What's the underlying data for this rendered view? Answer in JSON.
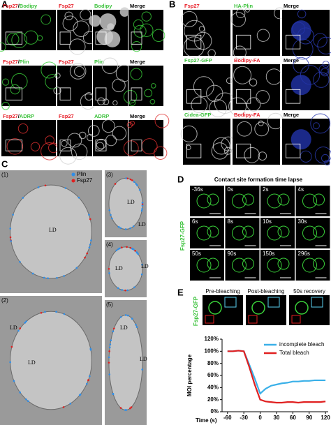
{
  "panel_a": {
    "label": "A",
    "rows": [
      {
        "title": [
          "Fsp27",
          "/",
          "Bodipy"
        ],
        "columns": [
          "Fsp27",
          "Bodipy",
          "Merge"
        ]
      },
      {
        "title": [
          "Fsp27",
          "/",
          "Plin"
        ],
        "columns": [
          "Fsp27",
          "Plin",
          "Merge"
        ]
      },
      {
        "title": [
          "Fsp27",
          "/",
          "ADRP"
        ],
        "columns": [
          "Fsp27",
          "ADRP",
          "Merge"
        ]
      }
    ]
  },
  "panel_b": {
    "label": "B",
    "rows": [
      {
        "columns": [
          "Fsp27",
          "HA-Plin",
          "Merge"
        ]
      },
      {
        "columns": [
          "Fsp27-GFP",
          "Bodipy-FA",
          "Merge"
        ]
      },
      {
        "columns": [
          "Cidea-GFP",
          "Bodipy-FA",
          "Merge"
        ]
      }
    ]
  },
  "panel_c": {
    "label": "C",
    "legend": [
      "Plin",
      "Fsp27"
    ],
    "images": [
      {
        "label": "(1)",
        "regions": [
          "LD"
        ]
      },
      {
        "label": "(2)",
        "regions": [
          "LD",
          "LD"
        ]
      },
      {
        "label": "(3)",
        "regions": [
          "LD",
          "LD"
        ]
      },
      {
        "label": "(4)",
        "regions": [
          "LD",
          "LD"
        ]
      },
      {
        "label": "(5)",
        "regions": [
          "LD",
          "LD"
        ]
      }
    ]
  },
  "panel_d": {
    "label": "D",
    "title": "Contact site formation time lapse",
    "channel": "Fsp27-GFP",
    "timepoints": [
      "-36s",
      "0s",
      "2s",
      "4s",
      "6s",
      "8s",
      "10s",
      "30s",
      "50s",
      "90s",
      "150s",
      "296s"
    ]
  },
  "panel_e": {
    "label": "E",
    "channel": "Fsp27-GFP",
    "images": [
      "Pre-bleaching",
      "Post-bleaching",
      "50s recovery"
    ],
    "chart_data": {
      "type": "line",
      "xlabel": "Time (s)",
      "ylabel": "MOI percentage",
      "x": [
        -60,
        -50,
        -40,
        -30,
        -20,
        -10,
        0,
        10,
        20,
        30,
        40,
        50,
        60,
        70,
        80,
        90,
        100,
        110,
        120
      ],
      "series": [
        {
          "name": "incomplete bleach",
          "color": "#3ab0e8",
          "values": [
            100,
            100,
            101,
            100,
            78,
            55,
            30,
            38,
            43,
            45,
            47,
            48,
            50,
            50,
            51,
            51,
            52,
            52,
            52
          ]
        },
        {
          "name": "Total bleach",
          "color": "#e02020",
          "values": [
            100,
            100,
            101,
            100,
            74,
            45,
            20,
            17,
            16,
            15,
            15,
            16,
            16,
            15,
            16,
            16,
            16,
            16,
            17
          ]
        }
      ],
      "xlim": [
        -70,
        125
      ],
      "xticks": [
        -60,
        -30,
        0,
        30,
        60,
        90,
        120
      ],
      "ylim": [
        0,
        120
      ],
      "yticks": [
        {
          "value": 0,
          "label": "0%"
        },
        {
          "value": 20,
          "label": "20%"
        },
        {
          "value": 40,
          "label": "40%"
        },
        {
          "value": 60,
          "label": "60%"
        },
        {
          "value": 80,
          "label": "80%"
        },
        {
          "value": 100,
          "label": "100%"
        },
        {
          "value": 120,
          "label": "120%"
        }
      ]
    }
  }
}
